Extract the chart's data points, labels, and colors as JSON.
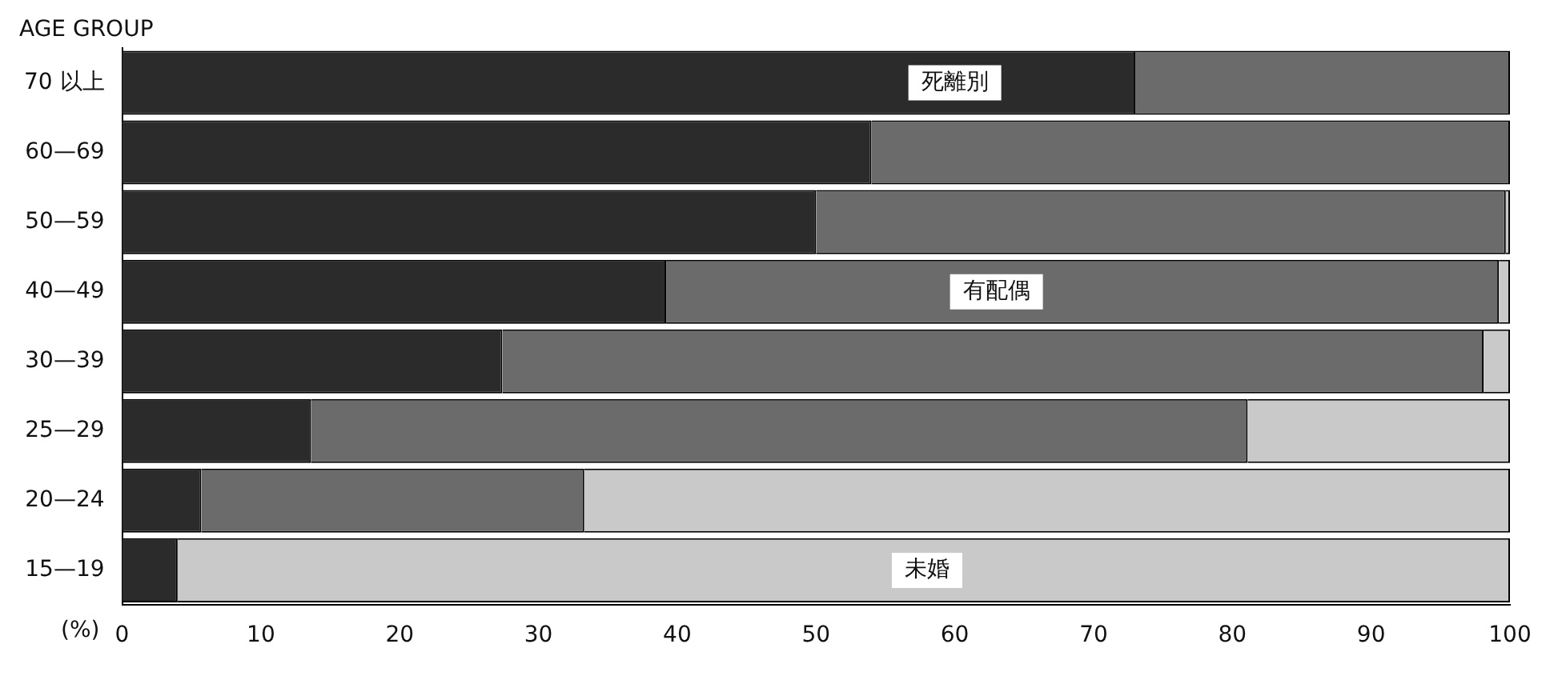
{
  "chart_data": {
    "type": "bar",
    "orientation": "horizontal",
    "stacked": true,
    "ylabel": "AGE GROUP",
    "xlabel": "(%)",
    "categories": [
      "70 以上",
      "60—69",
      "50—59",
      "40—49",
      "30—39",
      "25—29",
      "20—24",
      "15—19"
    ],
    "series": [
      {
        "color": "#2b2b2b",
        "values": [
          73,
          54,
          50,
          39.2,
          27.4,
          13.6,
          5.7,
          4
        ]
      },
      {
        "color": "#6b6b6b",
        "values": [
          27,
          46,
          49.7,
          60,
          70.7,
          67.5,
          27.6,
          0
        ]
      },
      {
        "color": "#c9c9c9",
        "values": [
          0,
          0,
          0.3,
          0.8,
          1.9,
          18.9,
          66.7,
          96
        ]
      }
    ],
    "xlim": [
      0,
      100
    ],
    "xticks": [
      0,
      10,
      20,
      30,
      40,
      50,
      60,
      70,
      80,
      90,
      100
    ],
    "grid": false,
    "legend": false,
    "annotations": [
      {
        "text": "死離別",
        "x": 60,
        "y": "70 以上"
      },
      {
        "text": "有配偶",
        "x": 63,
        "y": "40—49"
      },
      {
        "text": "未婚",
        "x": 58,
        "y": "15—19"
      }
    ]
  }
}
